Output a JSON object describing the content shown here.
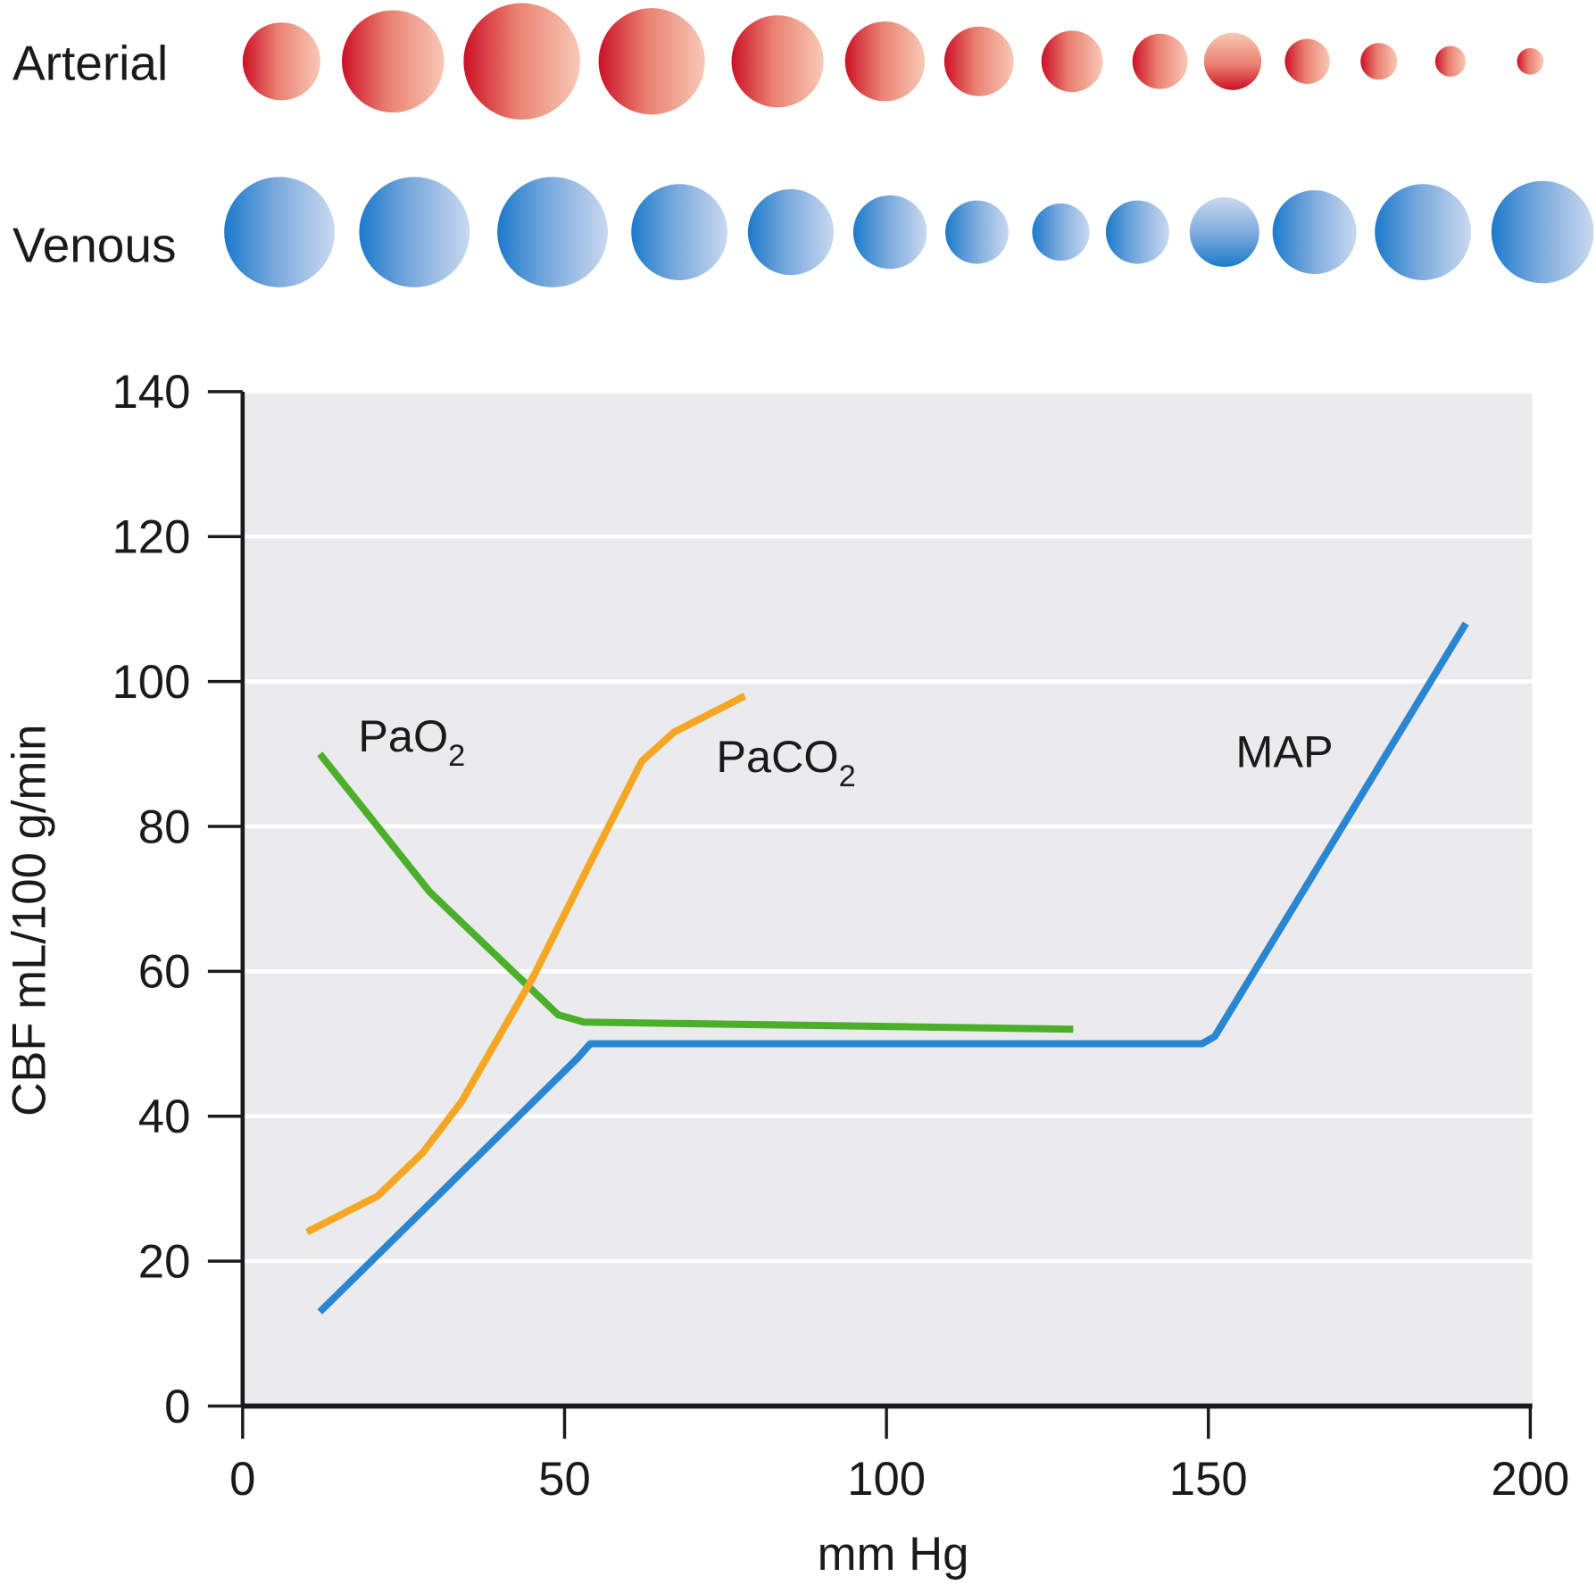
{
  "rows": {
    "arterial_label": "Arterial",
    "venous_label": "Venous"
  },
  "chart_data": {
    "type": "line",
    "xlabel": "mm Hg",
    "ylabel": "CBF mL/100 g/min",
    "xlim": [
      0,
      200
    ],
    "ylim": [
      0,
      140
    ],
    "xticks": [
      "0",
      "50",
      "100",
      "150",
      "200"
    ],
    "yticks": [
      "0",
      "20",
      "40",
      "60",
      "80",
      "100",
      "120",
      "140"
    ],
    "grid": true,
    "series": [
      {
        "name": "PaO2",
        "label_main": "PaO",
        "label_sub": "2",
        "color": "#4caf2a",
        "points": [
          [
            12,
            90
          ],
          [
            29,
            71
          ],
          [
            49,
            54
          ],
          [
            53,
            53
          ],
          [
            129,
            52
          ]
        ]
      },
      {
        "name": "PaCO2",
        "label_main": "PaCO",
        "label_sub": "2",
        "color": "#f5a623",
        "points": [
          [
            10,
            24
          ],
          [
            21,
            29
          ],
          [
            28,
            35
          ],
          [
            34,
            42
          ],
          [
            45,
            59
          ],
          [
            54,
            75
          ],
          [
            62,
            89
          ],
          [
            67,
            93
          ],
          [
            78,
            98
          ]
        ]
      },
      {
        "name": "MAP",
        "label_main": "MAP",
        "label_sub": "",
        "color": "#2b86d1",
        "points": [
          [
            12,
            13
          ],
          [
            52,
            48
          ],
          [
            54,
            50
          ],
          [
            149,
            50
          ],
          [
            151,
            51
          ],
          [
            190,
            108
          ]
        ]
      }
    ]
  }
}
